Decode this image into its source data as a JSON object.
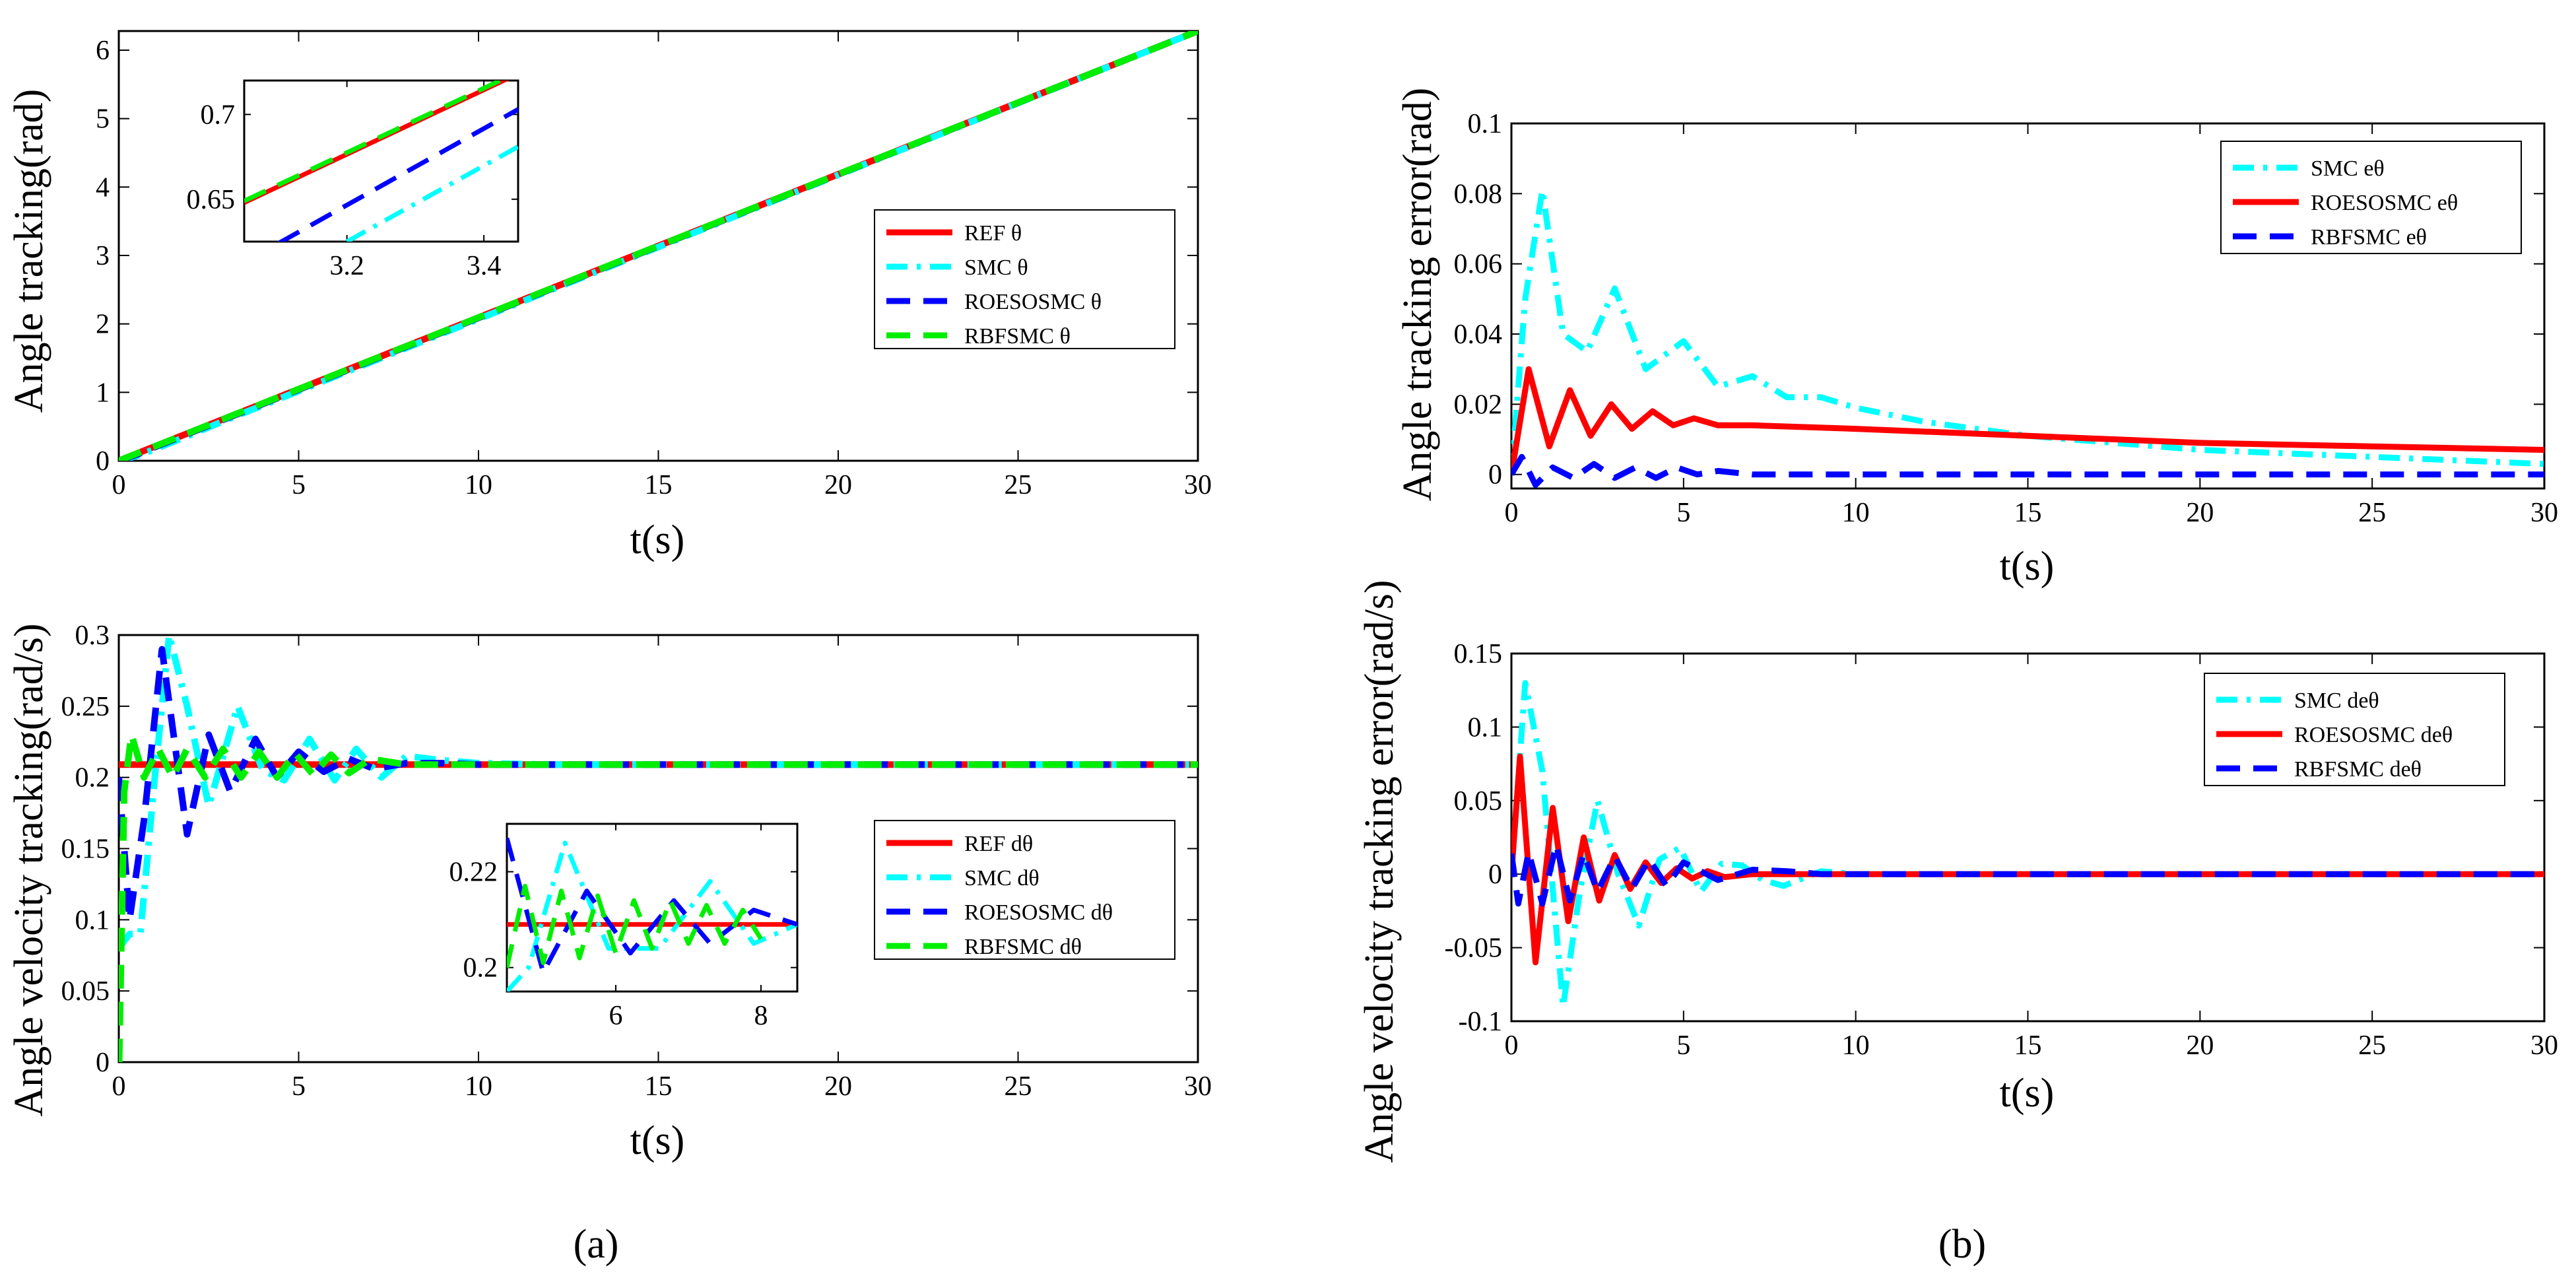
{
  "captions": [
    "(a)",
    "(b)"
  ],
  "colors": {
    "ref": "#ff0000",
    "smc": "#00ffff",
    "roesosmc": "#0000ff",
    "rbfsmc": "#00ee00"
  },
  "chart_data": [
    {
      "type": "line",
      "id": "a_top",
      "title": "",
      "xlabel": "t(s)",
      "ylabel": "Angle tracking(rad)",
      "xlim": [
        0,
        30
      ],
      "ylim": [
        0,
        6.28
      ],
      "xticks": [
        0,
        5,
        10,
        15,
        20,
        25,
        30
      ],
      "yticks": [
        0,
        1,
        2,
        3,
        4,
        5,
        6
      ],
      "xtick_labels": [
        "0",
        "5",
        "10",
        "15",
        "20",
        "25",
        "30"
      ],
      "ytick_labels": [
        "0",
        "1",
        "2",
        "3",
        "4",
        "5",
        "6"
      ],
      "legend_position": "middle-right",
      "series": [
        {
          "name": "REF θ",
          "key": "ref",
          "style": "solid",
          "x": [
            0,
            30
          ],
          "y": [
            0,
            6.28
          ]
        },
        {
          "name": "SMC θ",
          "key": "smc",
          "style": "dashdot",
          "x": [
            0,
            0.5,
            1,
            2,
            3,
            5,
            30
          ],
          "y": [
            0,
            0.07,
            0.17,
            0.38,
            0.6,
            1.02,
            6.28
          ]
        },
        {
          "name": "ROESOSMC θ",
          "key": "roesosmc",
          "style": "dashed",
          "x": [
            0,
            0.5,
            1,
            2,
            3,
            5,
            30
          ],
          "y": [
            0,
            0.09,
            0.2,
            0.41,
            0.62,
            1.04,
            6.28
          ]
        },
        {
          "name": "RBFSMC θ",
          "key": "rbfsmc",
          "style": "dashed",
          "x": [
            0,
            30
          ],
          "y": [
            0,
            6.28
          ]
        }
      ],
      "inset": {
        "xlim": [
          3.05,
          3.45
        ],
        "ylim": [
          0.625,
          0.72
        ],
        "xticks": [
          3.2,
          3.4
        ],
        "yticks": [
          0.65,
          0.7
        ],
        "xtick_labels": [
          "3.2",
          "3.4"
        ],
        "ytick_labels": [
          "0.65",
          "0.7"
        ],
        "series": [
          {
            "key": "ref",
            "style": "solid",
            "x": [
              3.05,
              3.45
            ],
            "y": [
              0.648,
              0.724
            ]
          },
          {
            "key": "smc",
            "style": "dashdot",
            "x": [
              3.2,
              3.45
            ],
            "y": [
              0.625,
              0.681
            ]
          },
          {
            "key": "roesosmc",
            "style": "dashed",
            "x": [
              3.1,
              3.45
            ],
            "y": [
              0.624,
              0.703
            ]
          },
          {
            "key": "rbfsmc",
            "style": "dashed",
            "x": [
              3.05,
              3.45
            ],
            "y": [
              0.649,
              0.725
            ]
          }
        ]
      }
    },
    {
      "type": "line",
      "id": "a_bottom",
      "title": "",
      "xlabel": "t(s)",
      "ylabel": "Angle velocity tracking(rad/s)",
      "xlim": [
        0,
        30
      ],
      "ylim": [
        0,
        0.3
      ],
      "xticks": [
        0,
        5,
        10,
        15,
        20,
        25,
        30
      ],
      "yticks": [
        0,
        0.05,
        0.1,
        0.15,
        0.2,
        0.25,
        0.3
      ],
      "xtick_labels": [
        "0",
        "5",
        "10",
        "15",
        "20",
        "25",
        "30"
      ],
      "ytick_labels": [
        "0",
        "0.05",
        "0.1",
        "0.15",
        "0.2",
        "0.25",
        "0.3"
      ],
      "legend_position": "lower-right",
      "series": [
        {
          "name": "REF dθ",
          "key": "ref",
          "style": "solid",
          "x": [
            0,
            30
          ],
          "y": [
            0.209,
            0.209
          ]
        },
        {
          "name": "SMC dθ",
          "key": "smc",
          "style": "dashdot",
          "x": [
            0,
            0.3,
            0.6,
            1.0,
            1.4,
            1.9,
            2.5,
            3.3,
            4.0,
            4.6,
            5.3,
            6.0,
            6.6,
            7.3,
            8.0,
            9.0,
            10,
            12,
            30
          ],
          "y": [
            0.08,
            0.09,
            0.09,
            0.2,
            0.3,
            0.25,
            0.18,
            0.25,
            0.205,
            0.198,
            0.227,
            0.198,
            0.22,
            0.2,
            0.215,
            0.212,
            0.21,
            0.209,
            0.209
          ]
        },
        {
          "name": "ROESOSMC dθ",
          "key": "roesosmc",
          "style": "dashed",
          "x": [
            0,
            0.3,
            0.7,
            1.2,
            1.9,
            2.5,
            3.1,
            3.8,
            4.4,
            5.0,
            5.7,
            6.4,
            7.1,
            8.0,
            9.0,
            10,
            30
          ],
          "y": [
            0.2,
            0.1,
            0.17,
            0.29,
            0.16,
            0.23,
            0.19,
            0.227,
            0.2,
            0.218,
            0.204,
            0.213,
            0.206,
            0.21,
            0.21,
            0.209,
            0.209
          ]
        },
        {
          "name": "RBFSMC dθ",
          "key": "rbfsmc",
          "style": "dashed",
          "x": [
            0,
            0.01,
            0.15,
            0.35,
            0.7,
            1.1,
            1.5,
            1.9,
            2.4,
            2.9,
            3.4,
            3.9,
            4.4,
            4.9,
            5.4,
            5.9,
            6.4,
            7.0,
            8.0,
            9.0,
            30
          ],
          "y": [
            0,
            0.0,
            0.19,
            0.23,
            0.2,
            0.22,
            0.2,
            0.22,
            0.2,
            0.22,
            0.2,
            0.218,
            0.2,
            0.217,
            0.202,
            0.216,
            0.203,
            0.213,
            0.209,
            0.209,
            0.209
          ]
        }
      ],
      "inset": {
        "xlim": [
          4.5,
          8.5
        ],
        "ylim": [
          0.195,
          0.23
        ],
        "xticks": [
          6,
          8
        ],
        "yticks": [
          0.2,
          0.22
        ],
        "xtick_labels": [
          "6",
          "8"
        ],
        "ytick_labels": [
          "0.2",
          "0.22"
        ],
        "series": [
          {
            "key": "ref",
            "style": "solid",
            "x": [
              4.5,
              8.5
            ],
            "y": [
              0.209,
              0.209
            ]
          },
          {
            "key": "smc",
            "style": "dashdot",
            "x": [
              4.5,
              4.8,
              5.3,
              5.9,
              6.3,
              6.6,
              7.3,
              7.9,
              8.5
            ],
            "y": [
              0.195,
              0.2,
              0.226,
              0.204,
              0.204,
              0.204,
              0.218,
              0.205,
              0.209
            ]
          },
          {
            "key": "roesosmc",
            "style": "dashed",
            "x": [
              4.5,
              5.0,
              5.6,
              6.2,
              6.8,
              7.3,
              7.9,
              8.5
            ],
            "y": [
              0.227,
              0.199,
              0.216,
              0.203,
              0.214,
              0.205,
              0.212,
              0.209
            ]
          },
          {
            "key": "rbfsmc",
            "style": "dashed",
            "x": [
              4.5,
              4.75,
              5.0,
              5.25,
              5.5,
              5.75,
              6.0,
              6.25,
              6.5,
              6.75,
              7.0,
              7.25,
              7.5,
              7.75,
              8.0
            ],
            "y": [
              0.2,
              0.217,
              0.201,
              0.216,
              0.202,
              0.215,
              0.203,
              0.214,
              0.204,
              0.214,
              0.205,
              0.213,
              0.205,
              0.212,
              0.206
            ]
          }
        ]
      }
    },
    {
      "type": "line",
      "id": "b_top",
      "title": "",
      "xlabel": "t(s)",
      "ylabel": "Angle tracking error(rad)",
      "xlim": [
        0,
        30
      ],
      "ylim": [
        -0.004,
        0.1
      ],
      "xticks": [
        0,
        5,
        10,
        15,
        20,
        25,
        30
      ],
      "yticks": [
        0,
        0.02,
        0.04,
        0.06,
        0.08,
        0.1
      ],
      "xtick_labels": [
        "0",
        "5",
        "10",
        "15",
        "20",
        "25",
        "30"
      ],
      "ytick_labels": [
        "0",
        "0.02",
        "0.04",
        "0.06",
        "0.08",
        "0.1"
      ],
      "legend_position": "top-right",
      "series": [
        {
          "name": "SMC eθ",
          "key": "smc",
          "style": "dashdot",
          "x": [
            0,
            0.4,
            0.9,
            1.5,
            2.2,
            3.0,
            3.9,
            5.0,
            6.0,
            7.0,
            8.0,
            9.0,
            10,
            12,
            15,
            20,
            25,
            30
          ],
          "y": [
            0,
            0.05,
            0.081,
            0.04,
            0.035,
            0.053,
            0.03,
            0.038,
            0.025,
            0.028,
            0.022,
            0.022,
            0.019,
            0.015,
            0.011,
            0.007,
            0.005,
            0.003
          ]
        },
        {
          "name": "ROESOSMC eθ",
          "key": "ref",
          "style": "solid",
          "x": [
            0,
            0.5,
            1.1,
            1.7,
            2.3,
            2.9,
            3.5,
            4.1,
            4.7,
            5.3,
            6.0,
            7.0,
            10,
            15,
            20,
            25,
            30
          ],
          "y": [
            0,
            0.03,
            0.008,
            0.024,
            0.011,
            0.02,
            0.013,
            0.018,
            0.014,
            0.016,
            0.014,
            0.014,
            0.013,
            0.011,
            0.009,
            0.008,
            0.007
          ]
        },
        {
          "name": "RBFSMC eθ",
          "key": "roesosmc",
          "style": "dashed",
          "x": [
            0,
            0.3,
            0.7,
            1.2,
            1.8,
            2.4,
            3.0,
            3.6,
            4.2,
            4.8,
            5.4,
            6.0,
            7.0,
            8.0,
            9.0,
            10,
            30
          ],
          "y": [
            0,
            0.005,
            -0.003,
            0.002,
            -0.001,
            0.003,
            -0.001,
            0.002,
            -0.001,
            0.002,
            0.0,
            0.001,
            0.0,
            0.0,
            0.0,
            0.0,
            0.0
          ]
        }
      ]
    },
    {
      "type": "line",
      "id": "b_bottom",
      "title": "",
      "xlabel": "t(s)",
      "ylabel": "Angle velocity tracking error(rad/s)",
      "xlim": [
        0,
        30
      ],
      "ylim": [
        -0.1,
        0.15
      ],
      "xticks": [
        0,
        5,
        10,
        15,
        20,
        25,
        30
      ],
      "yticks": [
        -0.1,
        -0.05,
        0,
        0.05,
        0.1,
        0.15
      ],
      "xtick_labels": [
        "0",
        "5",
        "10",
        "15",
        "20",
        "25",
        "30"
      ],
      "ytick_labels": [
        "-0.1",
        "-0.05",
        "0",
        "0.05",
        "0.1",
        "0.15"
      ],
      "legend_position": "top-right",
      "series": [
        {
          "name": "SMC deθ",
          "key": "smc",
          "style": "dashdot",
          "x": [
            0,
            0.4,
            0.9,
            1.5,
            2.0,
            2.5,
            3.1,
            3.7,
            4.3,
            4.9,
            5.5,
            6.1,
            6.7,
            7.3,
            7.9,
            9.0,
            10,
            30
          ],
          "y": [
            0,
            0.13,
            0.07,
            -0.09,
            -0.01,
            0.05,
            0.0,
            -0.035,
            0.01,
            0.018,
            -0.012,
            0.007,
            0.006,
            -0.004,
            -0.008,
            0.002,
            0.0,
            0.0
          ]
        },
        {
          "name": "ROESOSMC deθ",
          "key": "ref",
          "style": "solid",
          "x": [
            0,
            0.25,
            0.7,
            1.2,
            1.65,
            2.1,
            2.55,
            3.0,
            3.45,
            3.9,
            4.35,
            4.8,
            5.25,
            5.7,
            6.2,
            7.0,
            8.0,
            30
          ],
          "y": [
            0,
            0.08,
            -0.06,
            0.045,
            -0.032,
            0.025,
            -0.018,
            0.013,
            -0.01,
            0.008,
            -0.006,
            0.004,
            -0.003,
            0.002,
            -0.002,
            0.0,
            0.0,
            0.0
          ]
        },
        {
          "name": "RBFSMC deθ",
          "key": "roesosmc",
          "style": "dashed",
          "x": [
            0,
            0.2,
            0.5,
            0.9,
            1.3,
            1.7,
            2.1,
            2.5,
            3.0,
            3.5,
            4.0,
            4.5,
            5.0,
            6.0,
            7.0,
            8.0,
            9.0,
            30
          ],
          "y": [
            0.014,
            -0.02,
            0.015,
            -0.02,
            0.02,
            -0.018,
            0.014,
            -0.012,
            0.012,
            -0.01,
            0.01,
            -0.008,
            0.008,
            -0.004,
            0.003,
            0.002,
            0.0,
            0.0
          ]
        }
      ]
    }
  ]
}
